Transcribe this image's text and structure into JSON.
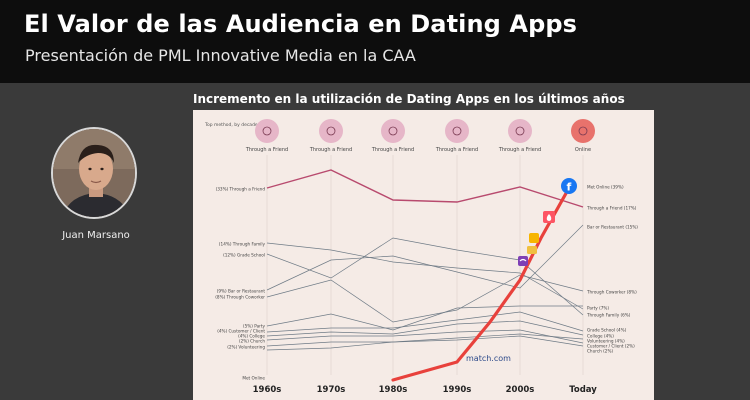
{
  "header": {
    "title": "El Valor de las Audiencia en Dating Apps",
    "subtitle": "Presentación de PML Innovative Media en la CAA"
  },
  "presenter": {
    "name": "Juan Marsano"
  },
  "slide": {
    "title": "Incremento en la utilización de Dating Apps en los últimos años"
  },
  "chart_data": {
    "type": "line",
    "top_method_label": "Top method, by decade",
    "x": [
      "1960s",
      "1970s",
      "1980s",
      "1990s",
      "2000s",
      "Today"
    ],
    "top_methods": [
      "Through a Friend",
      "Through a Friend",
      "Through a Friend",
      "Through a Friend",
      "Through a Friend",
      "Online"
    ],
    "left_labels": [
      "(33%) Through a Friend",
      "(14%) Through Family",
      "(12%) Grade School",
      "(9%) Bar or Restaurant",
      "(8%) Through Coworker",
      "(5%) Party",
      "(4%) Customer / Client",
      "(4%) College",
      "(2%) Church",
      "(2%) Volunteering",
      "Met Online"
    ],
    "right_labels": [
      "Met Online (39%)",
      "Through a Friend (17%)",
      "Bar or Restaurant (15%)",
      "Through Coworker (8%)",
      "Party (7%)",
      "Through Family (6%)",
      "Grade School (4%)",
      "College (4%)",
      "Volunteering (4%)",
      "Customer / Client (2%)",
      "Church (2%)"
    ],
    "annotation": "match.com",
    "colors": {
      "online": "#e8413c",
      "friend": "#b84a6e",
      "other": "#6f7b86",
      "bg": "#f5ebe6"
    }
  }
}
